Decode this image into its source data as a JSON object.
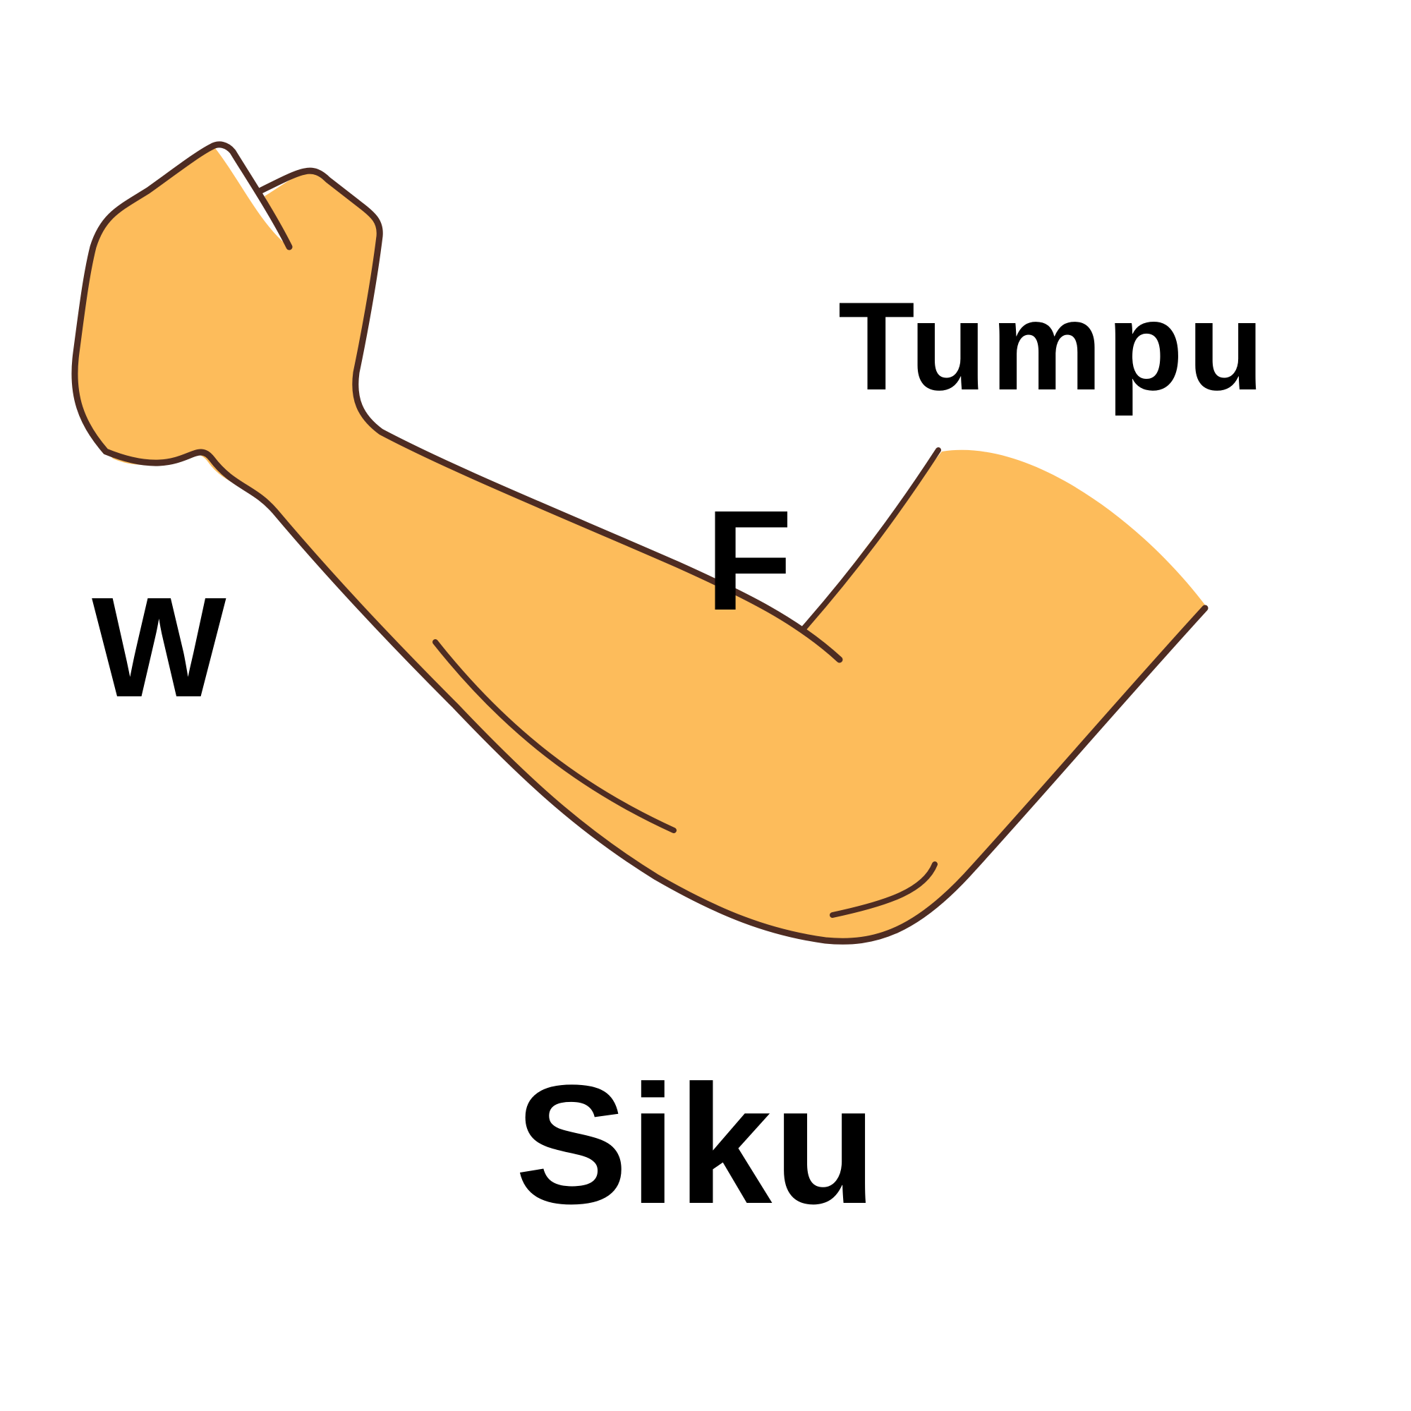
{
  "labels": {
    "tumpu": "Tumpu",
    "force": "F",
    "weight": "W",
    "elbow": "Siku"
  },
  "colors": {
    "skin": "#FDBC5B",
    "outline": "#4E2C22",
    "text": "#000000",
    "background": "#FFFFFF"
  }
}
